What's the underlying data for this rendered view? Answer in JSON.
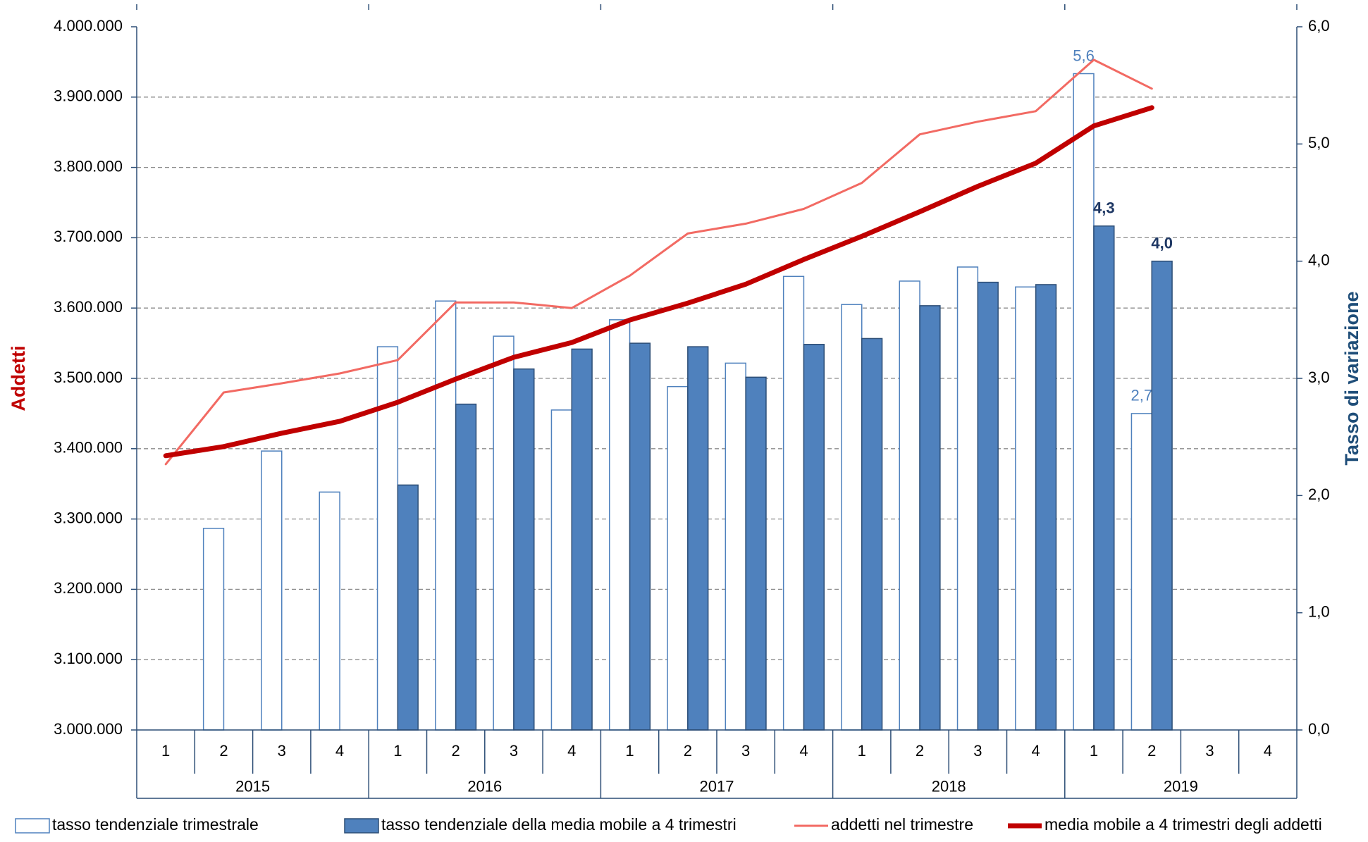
{
  "chart_data": {
    "type": "combo",
    "y_label": "Addetti",
    "y2_label": "Tasso di variazione",
    "categories": [
      "1",
      "2",
      "3",
      "4",
      "1",
      "2",
      "3",
      "4",
      "1",
      "2",
      "3",
      "4",
      "1",
      "2",
      "3",
      "4",
      "1",
      "2",
      "3",
      "4"
    ],
    "year_groups": [
      "2015",
      "2016",
      "2017",
      "2018",
      "2019"
    ],
    "ylim": [
      3000000,
      4000000
    ],
    "yticks": [
      {
        "value": 3000000,
        "label": "3.000.000"
      },
      {
        "value": 3100000,
        "label": "3.100.000"
      },
      {
        "value": 3200000,
        "label": "3.200.000"
      },
      {
        "value": 3300000,
        "label": "3.300.000"
      },
      {
        "value": 3400000,
        "label": "3.400.000"
      },
      {
        "value": 3500000,
        "label": "3.500.000"
      },
      {
        "value": 3600000,
        "label": "3.600.000"
      },
      {
        "value": 3700000,
        "label": "3.700.000"
      },
      {
        "value": 3800000,
        "label": "3.800.000"
      },
      {
        "value": 3900000,
        "label": "3.900.000"
      },
      {
        "value": 4000000,
        "label": "4.000.000"
      }
    ],
    "y2lim": [
      0,
      6
    ],
    "y2ticks": [
      {
        "value": 0,
        "label": "0,0"
      },
      {
        "value": 1,
        "label": "1,0"
      },
      {
        "value": 2,
        "label": "2,0"
      },
      {
        "value": 3,
        "label": "3,0"
      },
      {
        "value": 4,
        "label": "4,0"
      },
      {
        "value": 5,
        "label": "5,0"
      },
      {
        "value": 6,
        "label": "6,0"
      }
    ],
    "grid": true,
    "series": [
      {
        "name": "tasso tendenziale trimestrale",
        "type": "bar",
        "style": "hollow",
        "axis": "y2",
        "color": "#4f81bd",
        "values": [
          null,
          1.72,
          2.38,
          2.03,
          3.27,
          3.66,
          3.36,
          2.73,
          3.5,
          2.93,
          3.13,
          3.87,
          3.63,
          3.83,
          3.95,
          3.78,
          5.6,
          2.7,
          null,
          null
        ],
        "value_labels": [
          null,
          null,
          null,
          null,
          null,
          null,
          null,
          null,
          null,
          null,
          null,
          null,
          null,
          null,
          null,
          null,
          "5,6",
          "2,7",
          null,
          null
        ]
      },
      {
        "name": "tasso tendenziale della media mobile a 4 trimestri",
        "type": "bar",
        "style": "filled",
        "axis": "y2",
        "color": "#4f81bd",
        "values": [
          null,
          null,
          null,
          null,
          2.09,
          2.78,
          3.08,
          3.25,
          3.3,
          3.27,
          3.01,
          3.29,
          3.34,
          3.62,
          3.82,
          3.8,
          4.3,
          4.0,
          null,
          null
        ],
        "value_labels": [
          null,
          null,
          null,
          null,
          null,
          null,
          null,
          null,
          null,
          null,
          null,
          null,
          null,
          null,
          null,
          null,
          "4,3",
          "4,0",
          null,
          null
        ]
      },
      {
        "name": "addetti nel trimestre",
        "type": "line",
        "width": "thin",
        "axis": "y",
        "color": "#f26a63",
        "values": [
          3378000,
          3480000,
          3493000,
          3507000,
          3526000,
          3608000,
          3608000,
          3600000,
          3646000,
          3706000,
          3720000,
          3741000,
          3778000,
          3847000,
          3865000,
          3880000,
          3953000,
          3912000,
          null,
          null
        ]
      },
      {
        "name": "media mobile a 4 trimestri degli addetti",
        "type": "line",
        "width": "thick",
        "axis": "y",
        "color": "#c00000",
        "values": [
          3390000,
          3403000,
          3422000,
          3439000,
          3466000,
          3499000,
          3530000,
          3551000,
          3583000,
          3607000,
          3634000,
          3669000,
          3702000,
          3737000,
          3773000,
          3806000,
          3859000,
          3885000,
          null,
          null
        ]
      }
    ]
  }
}
